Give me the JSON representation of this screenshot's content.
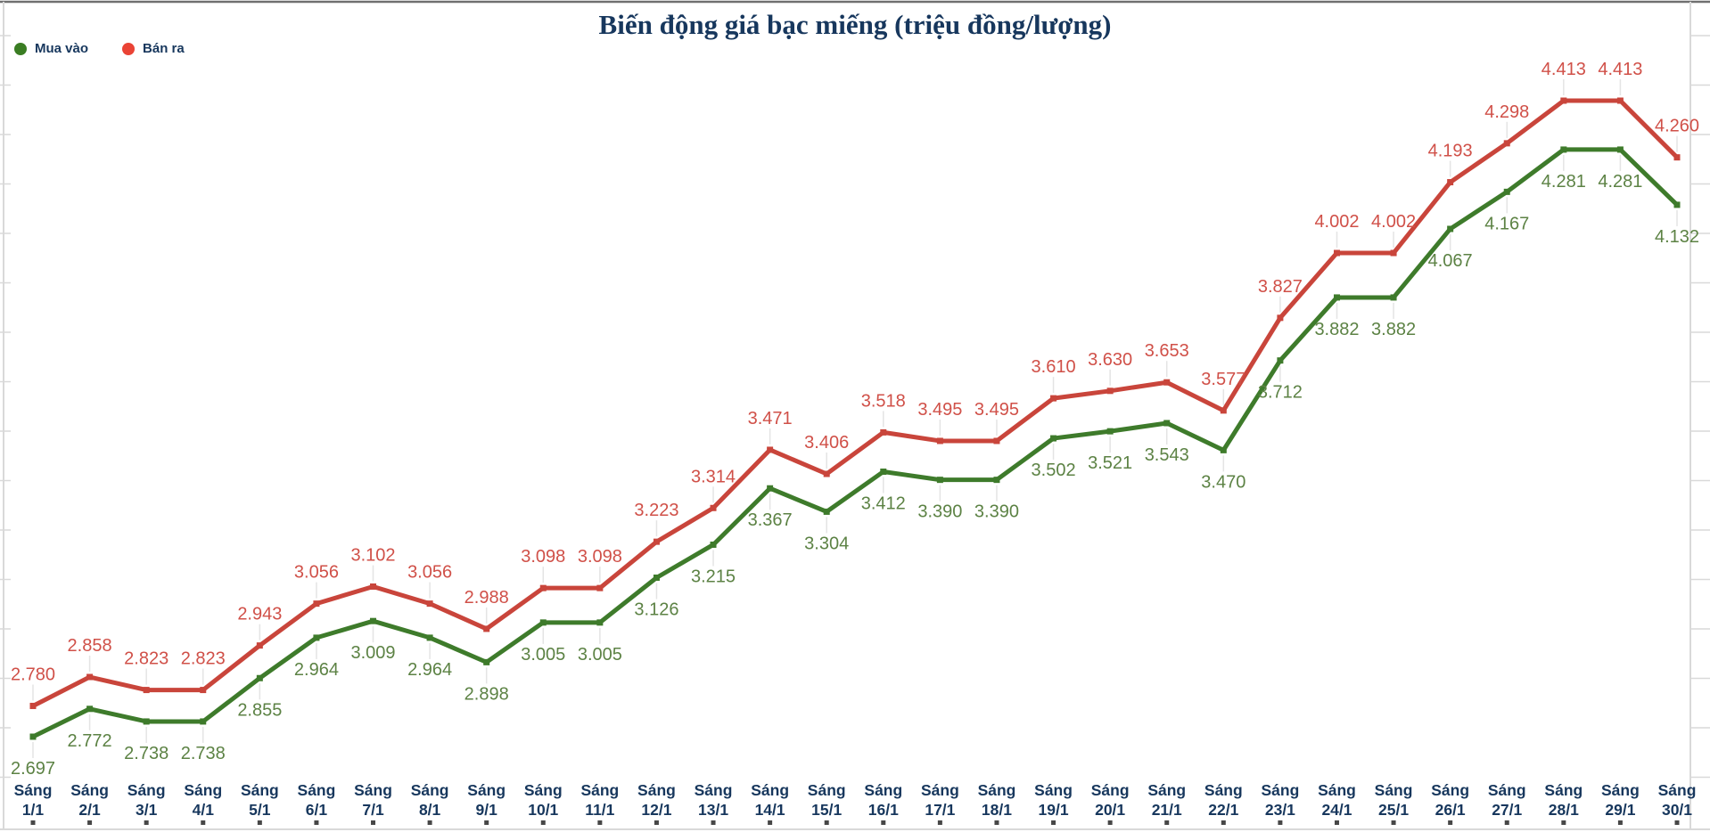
{
  "page": {
    "background": "#ffffff"
  },
  "chart_data": {
    "type": "line",
    "title": "Biến động giá bạc miếng (triệu đồng/lượng)",
    "x_prefix": "Sáng",
    "categories": [
      "1/1",
      "2/1",
      "3/1",
      "4/1",
      "5/1",
      "6/1",
      "7/1",
      "8/1",
      "9/1",
      "10/1",
      "11/1",
      "12/1",
      "13/1",
      "14/1",
      "15/1",
      "16/1",
      "17/1",
      "18/1",
      "19/1",
      "20/1",
      "21/1",
      "22/1",
      "23/1",
      "24/1",
      "25/1",
      "26/1",
      "27/1",
      "28/1",
      "29/1",
      "30/1"
    ],
    "series": [
      {
        "name": "Mua vào",
        "line_color": "#3e7b2b",
        "label_color": "#5c8244",
        "legend_dot_color": "#3a7d23",
        "label_position": "below",
        "values": [
          2.697,
          2.772,
          2.738,
          2.738,
          2.855,
          2.964,
          3.009,
          2.964,
          2.898,
          3.005,
          3.005,
          3.126,
          3.215,
          3.367,
          3.304,
          3.412,
          3.39,
          3.39,
          3.502,
          3.521,
          3.543,
          3.47,
          3.712,
          3.882,
          3.882,
          4.067,
          4.167,
          4.281,
          4.281,
          4.132
        ]
      },
      {
        "name": "Bán ra",
        "line_color": "#c9453b",
        "label_color": "#d05048",
        "legend_dot_color": "#ea4335",
        "label_position": "above",
        "values": [
          2.78,
          2.858,
          2.823,
          2.823,
          2.943,
          3.056,
          3.102,
          3.056,
          2.988,
          3.098,
          3.098,
          3.223,
          3.314,
          3.471,
          3.406,
          3.518,
          3.495,
          3.495,
          3.61,
          3.63,
          3.653,
          3.577,
          3.827,
          4.002,
          4.002,
          4.193,
          4.298,
          4.413,
          4.413,
          4.26
        ]
      }
    ],
    "value_format_decimals": 3,
    "ylim": [
      2.697,
      4.413
    ],
    "xlabel": "",
    "ylabel": "",
    "grid": "border-ticks-only",
    "legend_position": "top-left",
    "axis_text_color": "#17375d",
    "border_color": "#d9d9d9",
    "top_border_color": "#707070",
    "connector_color": "#e4e4e4",
    "category_tick_color": "#474747"
  }
}
